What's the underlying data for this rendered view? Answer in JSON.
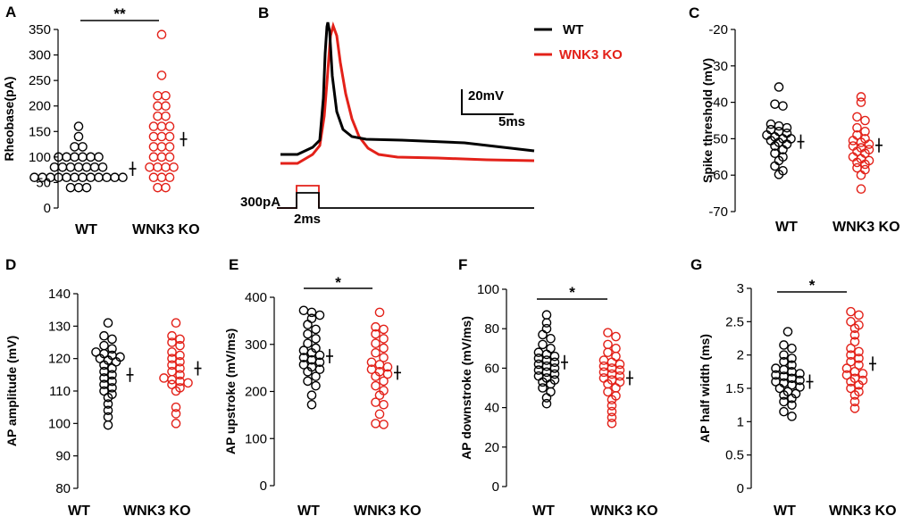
{
  "colors": {
    "wt": "#000000",
    "ko": "#e32119"
  },
  "trace_panel": {
    "letter": "B",
    "legend": [
      {
        "label": "WT",
        "color": "#000000"
      },
      {
        "label": "WNK3 KO",
        "color": "#e32119"
      }
    ],
    "scale_bar": {
      "voltage": "20mV",
      "time": "5ms"
    },
    "stimulus": {
      "current": "300pA",
      "duration": "2ms"
    }
  },
  "chart_data": [
    {
      "letter": "A",
      "type": "scatter",
      "ylabel": "Rheobase(pA)",
      "ylim": [
        0,
        350
      ],
      "yticks": [
        0,
        50,
        100,
        150,
        200,
        250,
        300,
        350
      ],
      "categories": [
        "WT",
        "WNK3 KO"
      ],
      "significance": "**",
      "series": [
        {
          "name": "WT",
          "mean": 77,
          "values": [
            60,
            60,
            60,
            60,
            60,
            60,
            60,
            60,
            60,
            60,
            60,
            60,
            40,
            40,
            40,
            80,
            80,
            80,
            80,
            80,
            80,
            80,
            100,
            100,
            100,
            100,
            100,
            100,
            120,
            120,
            140,
            160
          ]
        },
        {
          "name": "WNK3 KO",
          "mean": 135,
          "values": [
            40,
            40,
            60,
            60,
            60,
            80,
            80,
            80,
            80,
            100,
            100,
            100,
            120,
            120,
            120,
            140,
            140,
            140,
            160,
            160,
            160,
            180,
            180,
            200,
            200,
            220,
            220,
            260,
            340
          ]
        }
      ]
    },
    {
      "letter": "C",
      "type": "scatter",
      "ylabel": "Spike threshold (mV)",
      "ylim": [
        -70,
        -20
      ],
      "yticks": [
        -70,
        -60,
        -50,
        -40,
        -30,
        -20
      ],
      "categories": [
        "WT",
        "WNK3 KO"
      ],
      "significance": "",
      "series": [
        {
          "name": "WT",
          "mean": -50.8,
          "values": [
            -59.8,
            -58.8,
            -57.5,
            -56,
            -55,
            -54,
            -53,
            -52,
            -51.5,
            -51,
            -50.5,
            -50,
            -50,
            -49.5,
            -49,
            -48.5,
            -48,
            -47.5,
            -47,
            -46.5,
            -46,
            -41,
            -40.5,
            -35.8
          ]
        },
        {
          "name": "WNK3 KO",
          "mean": -51.8,
          "values": [
            -63.8,
            -60,
            -58.5,
            -58,
            -57,
            -56.5,
            -56,
            -55.5,
            -55,
            -54,
            -53.5,
            -53,
            -52.5,
            -52,
            -51.5,
            -51,
            -50.5,
            -50,
            -49,
            -48,
            -47,
            -45,
            -44,
            -40,
            -38.5
          ]
        }
      ]
    },
    {
      "letter": "D",
      "type": "scatter",
      "ylabel": "AP amplitude (mV)",
      "ylim": [
        80,
        140
      ],
      "yticks": [
        80,
        90,
        100,
        110,
        120,
        130,
        140
      ],
      "categories": [
        "WT",
        "WNK3 KO"
      ],
      "significance": "",
      "series": [
        {
          "name": "WT",
          "mean": 115,
          "values": [
            99.5,
            102,
            104,
            106,
            108,
            109,
            110,
            111,
            112,
            113,
            114,
            115,
            116,
            117,
            118,
            119,
            119.5,
            120,
            120.5,
            121,
            121.5,
            122,
            123,
            124,
            126,
            127,
            131
          ]
        },
        {
          "name": "WNK3 KO",
          "mean": 117,
          "values": [
            100,
            103,
            105,
            110,
            111,
            112,
            112.5,
            113,
            113.5,
            114,
            115,
            116,
            117,
            118,
            119,
            120,
            121,
            122,
            124,
            125,
            126,
            127,
            131
          ]
        }
      ]
    },
    {
      "letter": "E",
      "type": "scatter",
      "ylabel": "AP upstroke (mV/ms)",
      "ylim": [
        0,
        400
      ],
      "yticks": [
        0,
        100,
        200,
        300,
        400
      ],
      "categories": [
        "WT",
        "WNK3 KO"
      ],
      "significance": "*",
      "series": [
        {
          "name": "WT",
          "mean": 275,
          "values": [
            172,
            192,
            212,
            222,
            232,
            242,
            247,
            252,
            257,
            262,
            267,
            272,
            277,
            282,
            287,
            292,
            302,
            312,
            322,
            332,
            342,
            355,
            362,
            368,
            372
          ]
        },
        {
          "name": "WNK3 KO",
          "mean": 240,
          "values": [
            130,
            132,
            152,
            172,
            177,
            192,
            202,
            212,
            222,
            232,
            237,
            242,
            247,
            252,
            257,
            262,
            272,
            282,
            292,
            302,
            312,
            322,
            332,
            337,
            368
          ]
        }
      ]
    },
    {
      "letter": "F",
      "type": "scatter",
      "ylabel": "AP downstroke (mV/ms)",
      "ylim": [
        0,
        100
      ],
      "yticks": [
        0,
        20,
        40,
        60,
        80,
        100
      ],
      "categories": [
        "WT",
        "WNK3 KO"
      ],
      "significance": "*",
      "series": [
        {
          "name": "WT",
          "mean": 63,
          "values": [
            42,
            45,
            48,
            50,
            52,
            53,
            54,
            55,
            56,
            57,
            58,
            59,
            60,
            61,
            62,
            63,
            64,
            65,
            66,
            67,
            68,
            70,
            72,
            75,
            77,
            80,
            83,
            87
          ]
        },
        {
          "name": "WNK3 KO",
          "mean": 55,
          "values": [
            32,
            35,
            38,
            41,
            44,
            46,
            48,
            50,
            52,
            53,
            54,
            55,
            56,
            57,
            58,
            59,
            60,
            61,
            62,
            63,
            64,
            66,
            68,
            70,
            72,
            76,
            78
          ]
        }
      ]
    },
    {
      "letter": "G",
      "type": "scatter",
      "ylabel": "AP half width (ms)",
      "ylim": [
        0,
        3
      ],
      "yticks": [
        0,
        0.5,
        1,
        1.5,
        2,
        2.5,
        3
      ],
      "categories": [
        "WT",
        "WNK3 KO"
      ],
      "significance": "*",
      "series": [
        {
          "name": "WT",
          "mean": 1.6,
          "values": [
            1.08,
            1.15,
            1.25,
            1.3,
            1.35,
            1.4,
            1.42,
            1.45,
            1.5,
            1.52,
            1.55,
            1.58,
            1.6,
            1.62,
            1.65,
            1.68,
            1.7,
            1.72,
            1.75,
            1.78,
            1.8,
            1.85,
            1.9,
            1.95,
            2.0,
            2.1,
            2.15,
            2.35
          ]
        },
        {
          "name": "WNK3 KO",
          "mean": 1.87,
          "values": [
            1.2,
            1.3,
            1.4,
            1.45,
            1.5,
            1.55,
            1.6,
            1.62,
            1.65,
            1.7,
            1.72,
            1.75,
            1.8,
            1.85,
            1.9,
            1.95,
            2.0,
            2.05,
            2.1,
            2.2,
            2.3,
            2.4,
            2.45,
            2.5,
            2.6,
            2.65
          ]
        }
      ]
    }
  ]
}
